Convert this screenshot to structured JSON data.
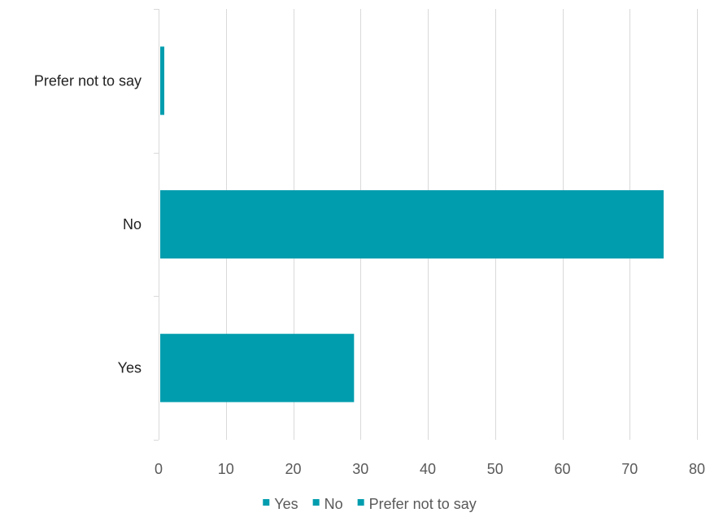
{
  "chart_data": {
    "type": "bar",
    "orientation": "horizontal",
    "categories": [
      "Yes",
      "No",
      "Prefer not to say"
    ],
    "values": [
      28.8,
      74.8,
      0.6
    ],
    "xlim": [
      0,
      80
    ],
    "xticks": [
      0,
      10,
      20,
      30,
      40,
      50,
      60,
      70,
      80
    ],
    "xtick_labels": [
      "0",
      "10",
      "20",
      "30",
      "40",
      "50",
      "60",
      "70",
      "80"
    ],
    "grid": true,
    "legend": {
      "placement": "bottom",
      "entries": [
        "Yes",
        "No",
        "Prefer not to say"
      ]
    },
    "bar_color": "#009DAE",
    "title": "",
    "xlabel": "",
    "ylabel": ""
  }
}
